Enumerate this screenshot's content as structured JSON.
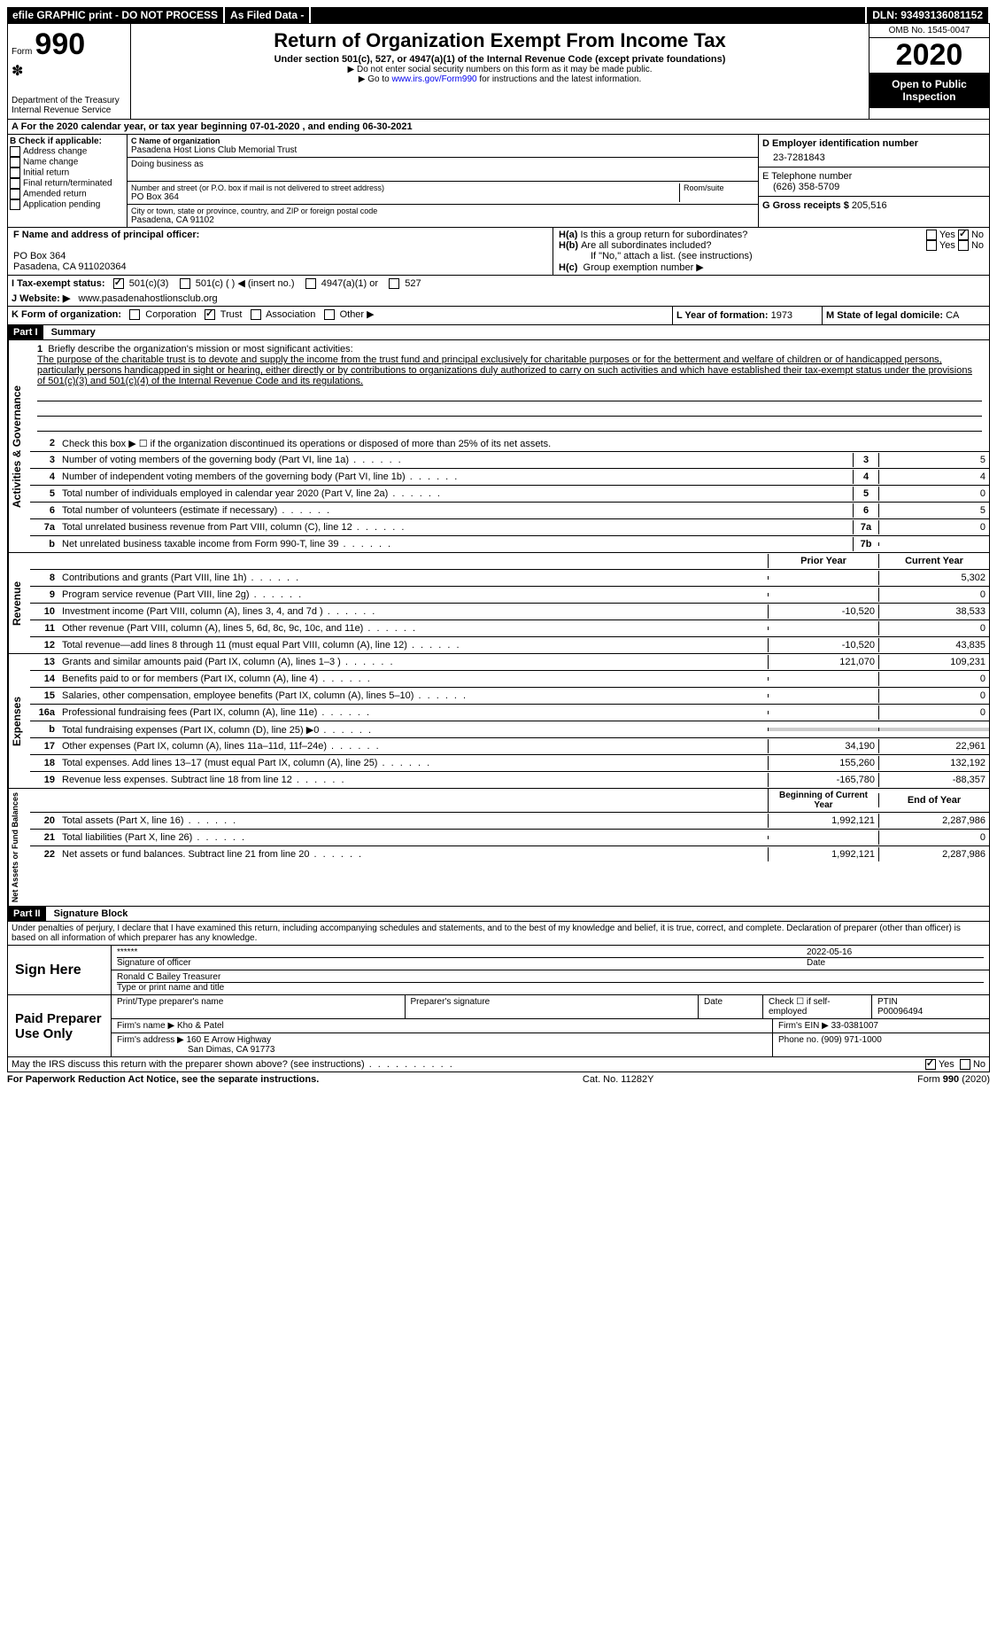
{
  "top": {
    "efile": "efile GRAPHIC print - DO NOT PROCESS",
    "filed": "As Filed Data -",
    "dln_label": "DLN:",
    "dln": "93493136081152"
  },
  "header": {
    "form_label": "Form",
    "form_no": "990",
    "dept": "Department of the Treasury\nInternal Revenue Service",
    "title": "Return of Organization Exempt From Income Tax",
    "subtitle": "Under section 501(c), 527, or 4947(a)(1) of the Internal Revenue Code (except private foundations)",
    "note1": "▶ Do not enter social security numbers on this form as it may be made public.",
    "note2_pre": "▶ Go to ",
    "note2_link": "www.irs.gov/Form990",
    "note2_post": " for instructions and the latest information.",
    "omb": "OMB No. 1545-0047",
    "year": "2020",
    "open": "Open to Public Inspection"
  },
  "rowA": "A   For the 2020 calendar year, or tax year beginning 07-01-2020   , and ending 06-30-2021",
  "colB": {
    "title": "B Check if applicable:",
    "items": [
      "Address change",
      "Name change",
      "Initial return",
      "Final return/terminated",
      "Amended return",
      "Application pending"
    ]
  },
  "colC": {
    "name_label": "C Name of organization",
    "name": "Pasadena Host Lions Club Memorial Trust",
    "dba_label": "Doing business as",
    "addr_label": "Number and street (or P.O. box if mail is not delivered to street address)",
    "addr": "PO Box 364",
    "room_label": "Room/suite",
    "city_label": "City or town, state or province, country, and ZIP or foreign postal code",
    "city": "Pasadena, CA  91102"
  },
  "colD": {
    "d_label": "D Employer identification number",
    "ein": "23-7281843",
    "e_label": "E Telephone number",
    "phone": "(626) 358-5709",
    "g_label": "G Gross receipts $",
    "gross": "205,516"
  },
  "rowF": {
    "f_label": "F  Name and address of principal officer:",
    "addr1": "PO Box 364",
    "addr2": "Pasadena, CA  911020364",
    "ha_label": "H(a)",
    "ha_text": "Is this a group return for subordinates?",
    "hb_label": "H(b)",
    "hb_text": "Are all subordinates included?",
    "hb_note": "If \"No,\" attach a list. (see instructions)",
    "hc_label": "H(c)",
    "hc_text": "Group exemption number ▶",
    "yes": "Yes",
    "no": "No"
  },
  "rowI": {
    "label": "I  Tax-exempt status:",
    "o1": "501(c)(3)",
    "o2": "501(c) (   ) ◀ (insert no.)",
    "o3": "4947(a)(1) or",
    "o4": "527"
  },
  "rowJ": {
    "label": "J  Website: ▶",
    "url": "www.pasadenahostlionsclub.org"
  },
  "rowK": {
    "label": "K Form of organization:",
    "o1": "Corporation",
    "o2": "Trust",
    "o3": "Association",
    "o4": "Other ▶",
    "l_label": "L Year of formation:",
    "l_val": "1973",
    "m_label": "M State of legal domicile:",
    "m_val": "CA"
  },
  "part1": {
    "header": "Part I",
    "title": "Summary",
    "l1_label": "1",
    "l1_text": "Briefly describe the organization's mission or most significant activities:",
    "mission": "The purpose of the charitable trust is to devote and supply the income from the trust fund and principal exclusively for charitable purposes or for the betterment and welfare of children or of handicapped persons, particularly persons handicapped in sight or hearing, either directly or by contributions to organizations duly authorized to carry on such activities and which have established their tax-exempt status under the provisions of 501(c)(3) and 501(c)(4) of the Internal Revenue Code and its regulations.",
    "l2": "Check this box ▶ ☐ if the organization discontinued its operations or disposed of more than 25% of its net assets.",
    "govLines": [
      {
        "n": "3",
        "d": "Number of voting members of the governing body (Part VI, line 1a)",
        "b": "3",
        "v": "5"
      },
      {
        "n": "4",
        "d": "Number of independent voting members of the governing body (Part VI, line 1b)",
        "b": "4",
        "v": "4"
      },
      {
        "n": "5",
        "d": "Total number of individuals employed in calendar year 2020 (Part V, line 2a)",
        "b": "5",
        "v": "0"
      },
      {
        "n": "6",
        "d": "Total number of volunteers (estimate if necessary)",
        "b": "6",
        "v": "5"
      },
      {
        "n": "7a",
        "d": "Total unrelated business revenue from Part VIII, column (C), line 12",
        "b": "7a",
        "v": "0"
      },
      {
        "n": "b",
        "d": "Net unrelated business taxable income from Form 990-T, line 39",
        "b": "7b",
        "v": ""
      }
    ],
    "col_prior": "Prior Year",
    "col_current": "Current Year",
    "revLines": [
      {
        "n": "8",
        "d": "Contributions and grants (Part VIII, line 1h)",
        "p": "",
        "c": "5,302"
      },
      {
        "n": "9",
        "d": "Program service revenue (Part VIII, line 2g)",
        "p": "",
        "c": "0"
      },
      {
        "n": "10",
        "d": "Investment income (Part VIII, column (A), lines 3, 4, and 7d )",
        "p": "-10,520",
        "c": "38,533"
      },
      {
        "n": "11",
        "d": "Other revenue (Part VIII, column (A), lines 5, 6d, 8c, 9c, 10c, and 11e)",
        "p": "",
        "c": "0"
      },
      {
        "n": "12",
        "d": "Total revenue—add lines 8 through 11 (must equal Part VIII, column (A), line 12)",
        "p": "-10,520",
        "c": "43,835"
      }
    ],
    "expLines": [
      {
        "n": "13",
        "d": "Grants and similar amounts paid (Part IX, column (A), lines 1–3 )",
        "p": "121,070",
        "c": "109,231"
      },
      {
        "n": "14",
        "d": "Benefits paid to or for members (Part IX, column (A), line 4)",
        "p": "",
        "c": "0"
      },
      {
        "n": "15",
        "d": "Salaries, other compensation, employee benefits (Part IX, column (A), lines 5–10)",
        "p": "",
        "c": "0"
      },
      {
        "n": "16a",
        "d": "Professional fundraising fees (Part IX, column (A), line 11e)",
        "p": "",
        "c": "0"
      },
      {
        "n": "b",
        "d": "Total fundraising expenses (Part IX, column (D), line 25) ▶0",
        "p": "—shade—",
        "c": "—shade—"
      },
      {
        "n": "17",
        "d": "Other expenses (Part IX, column (A), lines 11a–11d, 11f–24e)",
        "p": "34,190",
        "c": "22,961"
      },
      {
        "n": "18",
        "d": "Total expenses. Add lines 13–17 (must equal Part IX, column (A), line 25)",
        "p": "155,260",
        "c": "132,192"
      },
      {
        "n": "19",
        "d": "Revenue less expenses. Subtract line 18 from line 12",
        "p": "-165,780",
        "c": "-88,357"
      }
    ],
    "col_begin": "Beginning of Current Year",
    "col_end": "End of Year",
    "netLines": [
      {
        "n": "20",
        "d": "Total assets (Part X, line 16)",
        "p": "1,992,121",
        "c": "2,287,986"
      },
      {
        "n": "21",
        "d": "Total liabilities (Part X, line 26)",
        "p": "",
        "c": "0"
      },
      {
        "n": "22",
        "d": "Net assets or fund balances. Subtract line 21 from line 20",
        "p": "1,992,121",
        "c": "2,287,986"
      }
    ],
    "vert_gov": "Activities & Governance",
    "vert_rev": "Revenue",
    "vert_exp": "Expenses",
    "vert_net": "Net Assets or Fund Balances"
  },
  "part2": {
    "header": "Part II",
    "title": "Signature Block",
    "decl": "Under penalties of perjury, I declare that I have examined this return, including accompanying schedules and statements, and to the best of my knowledge and belief, it is true, correct, and complete. Declaration of preparer (other than officer) is based on all information of which preparer has any knowledge.",
    "sign_here": "Sign Here",
    "stars": "******",
    "sig_officer": "Signature of officer",
    "date_label": "Date",
    "sig_date": "2022-05-16",
    "name_title": "Ronald C Bailey Treasurer",
    "type_name": "Type or print name and title",
    "paid_label": "Paid Preparer Use Only",
    "p_name_label": "Print/Type preparer's name",
    "p_sig_label": "Preparer's signature",
    "p_date_label": "Date",
    "p_check": "Check ☐ if self-employed",
    "ptin_label": "PTIN",
    "ptin": "P00096494",
    "firm_name_label": "Firm's name   ▶",
    "firm_name": "Kho & Patel",
    "firm_ein_label": "Firm's EIN ▶",
    "firm_ein": "33-0381007",
    "firm_addr_label": "Firm's address ▶",
    "firm_addr1": "160 E Arrow Highway",
    "firm_addr2": "San Dimas, CA  91773",
    "phone_label": "Phone no.",
    "phone": "(909) 971-1000",
    "discuss": "May the IRS discuss this return with the preparer shown above? (see instructions)",
    "yes": "Yes",
    "no": "No"
  },
  "footer": {
    "left": "For Paperwork Reduction Act Notice, see the separate instructions.",
    "mid": "Cat. No. 11282Y",
    "right_pre": "Form ",
    "right_form": "990",
    "right_post": " (2020)"
  }
}
